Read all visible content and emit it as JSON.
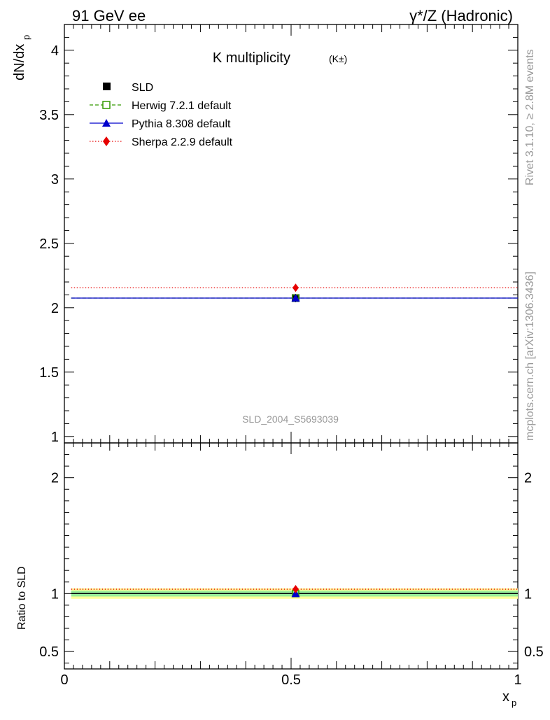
{
  "header": {
    "left": "91 GeV ee",
    "right": "γ*/Z (Hadronic)"
  },
  "side": {
    "rivet": "Rivet 3.1.10, ≥ 2.8M events",
    "mcplots": "mcplots.cern.ch [arXiv:1306.3436]"
  },
  "chart_data": {
    "type": "scatter",
    "title": "K multiplicity",
    "title_suffix": "(K±)",
    "watermark": "SLD_2004_S5693039",
    "xlabel": "x",
    "xlabel_sub": "p",
    "ylabel": "dN/dx",
    "ylabel_sub": "p",
    "xlim": [
      0,
      1
    ],
    "ylim": [
      0.95,
      4.2
    ],
    "x_ticks": [
      "0",
      "0.5",
      "1"
    ],
    "y_ticks": [
      "1",
      "1.5",
      "2",
      "2.5",
      "3",
      "3.5",
      "4"
    ],
    "legend_position": "top-left",
    "data_point": {
      "name": "SLD",
      "x": 0.51,
      "y": 2.075,
      "color": "#000000"
    },
    "series": [
      {
        "name": "Herwig 7.2.1 default",
        "color": "#339900",
        "style": "dashed",
        "marker": "open-square",
        "x_range": [
          0.015,
          1.0
        ],
        "y": 2.075,
        "marker_x": 0.51
      },
      {
        "name": "Pythia 8.308 default",
        "color": "#0000cc",
        "style": "solid",
        "marker": "triangle",
        "x_range": [
          0.015,
          1.0
        ],
        "y": 2.075,
        "marker_x": 0.51
      },
      {
        "name": "Sherpa 2.2.9 default",
        "color": "#e60000",
        "style": "dotted",
        "marker": "diamond",
        "x_range": [
          0.015,
          1.0
        ],
        "y": 2.155,
        "marker_x": 0.51
      }
    ],
    "ratio": {
      "ylabel": "Ratio to SLD",
      "ylim": [
        0.35,
        2.3
      ],
      "y_ticks": [
        "0.5",
        "1",
        "2"
      ],
      "band_yellow": [
        0.955,
        1.045
      ],
      "band_green": [
        0.975,
        1.025
      ],
      "values": [
        {
          "name": "Herwig 7.2.1 default",
          "value": 1.0
        },
        {
          "name": "Pythia 8.308 default",
          "value": 1.0
        },
        {
          "name": "Sherpa 2.2.9 default",
          "value": 1.038
        }
      ]
    }
  }
}
